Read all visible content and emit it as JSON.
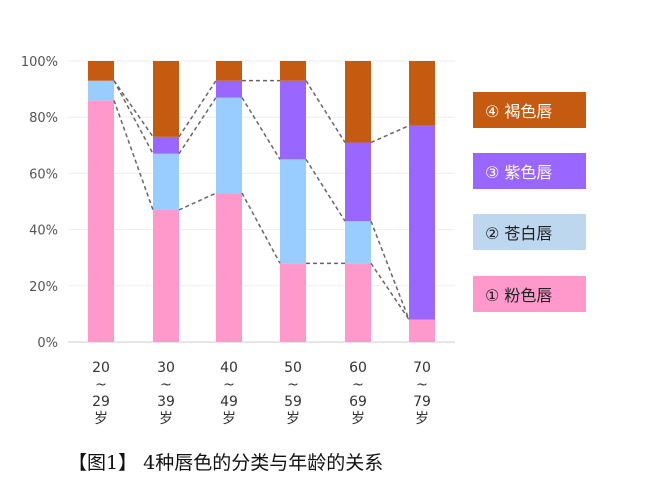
{
  "chart_data": {
    "type": "bar",
    "stacked": true,
    "categories": [
      "20\n~\n29\n岁",
      "30\n~\n39\n岁",
      "40\n~\n49\n岁",
      "50\n~\n59\n岁",
      "60\n~\n69\n岁",
      "70\n~\n79\n岁"
    ],
    "series": [
      {
        "name": "① 粉色唇",
        "color": "#ff99cc",
        "values": [
          86,
          47,
          53,
          28,
          28,
          8
        ]
      },
      {
        "name": "② 苍白唇",
        "color": "#99ccff",
        "values": [
          7,
          20,
          34,
          37,
          15,
          0
        ]
      },
      {
        "name": "③ 紫色唇",
        "color": "#9966ff",
        "values": [
          0,
          6,
          6,
          28,
          28,
          69
        ]
      },
      {
        "name": "④ 褐色唇",
        "color": "#c55a11",
        "values": [
          7,
          27,
          7,
          7,
          29,
          23
        ]
      }
    ],
    "yticks": [
      "0%",
      "20%",
      "40%",
      "60%",
      "80%",
      "100%"
    ],
    "ylim": [
      0,
      100
    ],
    "grid": true,
    "legend": "right",
    "title": "【图1】 4种唇色的分类与年龄的关系"
  }
}
